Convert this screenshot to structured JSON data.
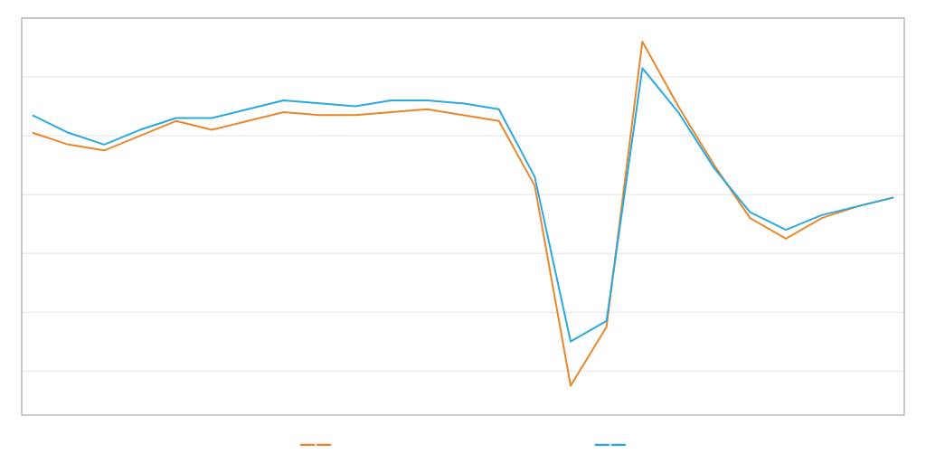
{
  "chart_data": {
    "type": "line",
    "x": [
      0,
      1,
      2,
      3,
      4,
      5,
      6,
      7,
      8,
      9,
      10,
      11,
      12,
      13,
      14,
      15,
      16,
      17,
      18,
      19,
      20,
      21,
      22,
      23,
      24
    ],
    "series": [
      {
        "name": "——",
        "color": "#E8872B",
        "values": [
          21,
          17,
          15,
          20,
          25,
          22,
          25,
          28,
          27,
          27,
          28,
          29,
          27,
          25,
          3,
          -65,
          -45,
          52,
          30,
          10,
          -8,
          -15,
          -8,
          -4,
          -1
        ]
      },
      {
        "name": "——",
        "color": "#29A9E0",
        "values": [
          27,
          21,
          17,
          22,
          26,
          26,
          29,
          32,
          31,
          30,
          32,
          32,
          31,
          29,
          6,
          -50,
          -43,
          43,
          28,
          9,
          -6,
          -12,
          -7,
          -4,
          -1
        ]
      }
    ],
    "xlim": [
      -0.3,
      24.3
    ],
    "ylim": [
      -75,
      60
    ],
    "yticks": [
      -60,
      -40,
      -20,
      0,
      20,
      40,
      60
    ],
    "grid": true,
    "tick_labels": false,
    "legend": "bottom"
  }
}
